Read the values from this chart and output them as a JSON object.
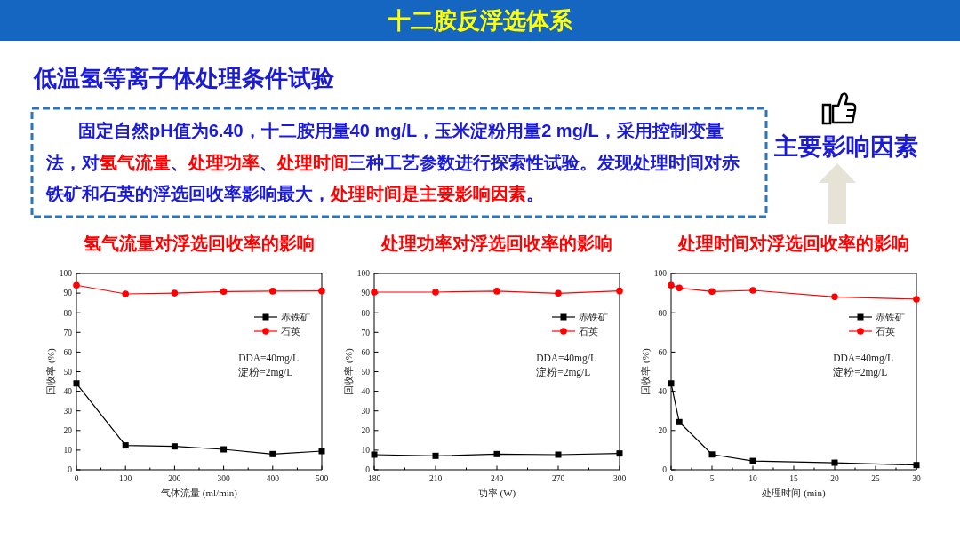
{
  "chart_data": [
    {
      "type": "other",
      "title": "十二胺反浮选体系",
      "subtitle": "低温氢等离子体处理条件试验",
      "annotations": [
        "固定自然pH值为6.40，十二胺用量40 mg/L，玉米淀粉用量2 mg/L，采用控制变量",
        "法，对",
        "氢气流量",
        "、",
        "处理功率",
        "、",
        "处理时间",
        "三种工艺参数进行探索性试验。发现处理时间对赤",
        "铁矿和石英的浮选回收率影响最大，",
        "处理时间是主要影响因素",
        "。",
        "主要影响因素"
      ],
      "colors": [
        "#1a1ad9",
        "#1a1ad9",
        "#ff0000",
        "#1a1ad9",
        "#ff0000",
        "#1a1ad9",
        "#ff0000",
        "#1a1ad9",
        "#1a1ad9",
        "#ff0000",
        "#1a1ad9",
        "#1a1ad9"
      ]
    },
    {
      "type": "line",
      "title": "氢气流量对浮选回收率的影响",
      "xlabel": "气体流量 (ml/min)",
      "ylabel": "回收率 (%)",
      "x": [
        0,
        100,
        200,
        300,
        400,
        500
      ],
      "xlim": [
        0,
        500
      ],
      "xticks": [
        0,
        {
          "value": 50,
          "label": null
        },
        100,
        {
          "value": 150,
          "label": null
        },
        200,
        {
          "value": 250,
          "label": null
        },
        300,
        {
          "value": 350,
          "label": null
        },
        400,
        {
          "value": 450,
          "label": null
        },
        500
      ],
      "ylim": [
        0,
        100
      ],
      "yticks": [
        0,
        10,
        20,
        30,
        40,
        50,
        60,
        70,
        80,
        90,
        100
      ],
      "legend": "top right",
      "annotations": [
        "DDA=40mg/L",
        "淀粉=2mg/L"
      ],
      "series": [
        {
          "name": "赤铁矿",
          "color": "#000000",
          "marker": "square",
          "values": [
            44,
            12.4,
            11.9,
            10.4,
            8,
            9.5
          ]
        },
        {
          "name": "石英",
          "color": "#ff0000",
          "marker": "circle",
          "values": [
            94,
            89.6,
            90,
            90.8,
            91,
            91.1
          ]
        }
      ]
    },
    {
      "type": "line",
      "title": "处理功率对浮选回收率的影响",
      "xlabel": "功率 (W)",
      "ylabel": "回收率 (%)",
      "x": [
        180,
        210,
        240,
        270,
        300
      ],
      "xlim": [
        180,
        300
      ],
      "xticks": [
        180,
        {
          "value": 195,
          "label": null
        },
        210,
        {
          "value": 225,
          "label": null
        },
        240,
        {
          "value": 255,
          "label": null
        },
        270,
        {
          "value": 285,
          "label": null
        },
        300
      ],
      "ylim": [
        0,
        100
      ],
      "yticks": [
        0,
        10,
        20,
        30,
        40,
        50,
        60,
        70,
        80,
        90,
        100
      ],
      "legend": "top right",
      "annotations": [
        "DDA=40mg/L",
        "淀粉=2mg/L"
      ],
      "series": [
        {
          "name": "赤铁矿",
          "color": "#000000",
          "marker": "square",
          "values": [
            7.7,
            7.1,
            8,
            7.7,
            8.3
          ]
        },
        {
          "name": "石英",
          "color": "#ff0000",
          "marker": "circle",
          "values": [
            90.5,
            90.5,
            91,
            89.9,
            91.1
          ]
        }
      ]
    },
    {
      "type": "line",
      "title": "处理时间对浮选回收率的影响",
      "xlabel": "处理时间 (min)",
      "ylabel": "回收率 (%)",
      "x": [
        0,
        1,
        5,
        10,
        20,
        30
      ],
      "xlim": [
        0,
        30
      ],
      "xticks": [
        0,
        {
          "value": 2.5,
          "label": null
        },
        5,
        {
          "value": 7.5,
          "label": null
        },
        10,
        {
          "value": 12.5,
          "label": null
        },
        15,
        {
          "value": 17.5,
          "label": null
        },
        20,
        {
          "value": 22.5,
          "label": null
        },
        25,
        {
          "value": 27.5,
          "label": null
        },
        30
      ],
      "ylim": [
        0,
        100
      ],
      "yticks": [
        0,
        20,
        40,
        60,
        80,
        100
      ],
      "legend": "top right",
      "annotations": [
        "DDA=40mg/L",
        "淀粉=2mg/L"
      ],
      "series": [
        {
          "name": "赤铁矿",
          "color": "#000000",
          "marker": "square",
          "values": [
            44,
            24.3,
            7.8,
            4.5,
            3.6,
            2.4
          ]
        },
        {
          "name": "石英",
          "color": "#ff0000",
          "marker": "circle",
          "values": [
            94,
            92.6,
            90.8,
            91.4,
            88.1,
            86.9
          ]
        }
      ]
    }
  ]
}
